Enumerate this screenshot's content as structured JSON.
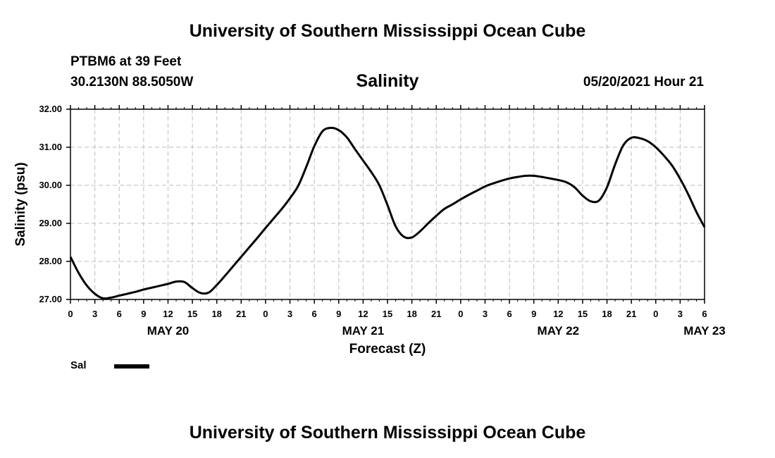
{
  "header": {
    "title": "University of Southern Mississippi Ocean Cube",
    "station": "PTBM6 at 39 Feet",
    "coordinates": "30.2130N  88.5050W",
    "chart_title": "Salinity",
    "datetime": "05/20/2021 Hour 21"
  },
  "footer": {
    "title": "University of Southern Mississippi Ocean Cube"
  },
  "legend": {
    "label": "Sal"
  },
  "chart_data": {
    "type": "line",
    "title": "Salinity",
    "xlabel": "Forecast (Z)",
    "ylabel": "Salinity (psu)",
    "ylim": [
      27.0,
      32.0
    ],
    "xlim": [
      0,
      78
    ],
    "y_ticks": [
      "27.00",
      "28.00",
      "29.00",
      "30.00",
      "31.00",
      "32.00"
    ],
    "x_tick_labels": [
      "0",
      "3",
      "6",
      "9",
      "12",
      "15",
      "18",
      "21",
      "0",
      "3",
      "6",
      "9",
      "12",
      "15",
      "18",
      "21",
      "0",
      "3",
      "6",
      "9",
      "12",
      "15",
      "18",
      "21",
      "0",
      "3",
      "6"
    ],
    "date_labels": [
      {
        "label": "MAY 20",
        "hour": 12
      },
      {
        "label": "MAY 21",
        "hour": 36
      },
      {
        "label": "MAY 22",
        "hour": 60
      },
      {
        "label": "MAY 23",
        "hour": 78
      }
    ],
    "grid": true,
    "series": [
      {
        "name": "Sal",
        "color": "#000000",
        "x": [
          0,
          1,
          2,
          3,
          4,
          5,
          6,
          7,
          8,
          9,
          10,
          11,
          12,
          13,
          14,
          15,
          16,
          17,
          18,
          19,
          20,
          21,
          22,
          23,
          24,
          25,
          26,
          27,
          28,
          29,
          30,
          31,
          32,
          33,
          34,
          35,
          36,
          37,
          38,
          39,
          40,
          41,
          42,
          43,
          44,
          45,
          46,
          47,
          48,
          49,
          50,
          51,
          52,
          53,
          54,
          55,
          56,
          57,
          58,
          59,
          60,
          61,
          62,
          63,
          64,
          65,
          66,
          67,
          68,
          69,
          70,
          71,
          72,
          73,
          74,
          75,
          76,
          77,
          78
        ],
        "values": [
          28.12,
          27.7,
          27.37,
          27.15,
          27.03,
          27.05,
          27.1,
          27.15,
          27.2,
          27.26,
          27.31,
          27.36,
          27.41,
          27.47,
          27.46,
          27.3,
          27.17,
          27.18,
          27.38,
          27.62,
          27.87,
          28.12,
          28.37,
          28.62,
          28.88,
          29.13,
          29.38,
          29.66,
          29.98,
          30.48,
          31.03,
          31.42,
          31.51,
          31.45,
          31.26,
          30.95,
          30.65,
          30.35,
          30.0,
          29.48,
          28.92,
          28.65,
          28.63,
          28.79,
          29.0,
          29.2,
          29.38,
          29.5,
          29.63,
          29.75,
          29.86,
          29.97,
          30.05,
          30.12,
          30.18,
          30.22,
          30.25,
          30.25,
          30.22,
          30.18,
          30.14,
          30.08,
          29.95,
          29.73,
          29.58,
          29.6,
          29.95,
          30.55,
          31.05,
          31.25,
          31.24,
          31.16,
          31.0,
          30.78,
          30.52,
          30.17,
          29.76,
          29.3,
          28.9
        ]
      }
    ]
  }
}
